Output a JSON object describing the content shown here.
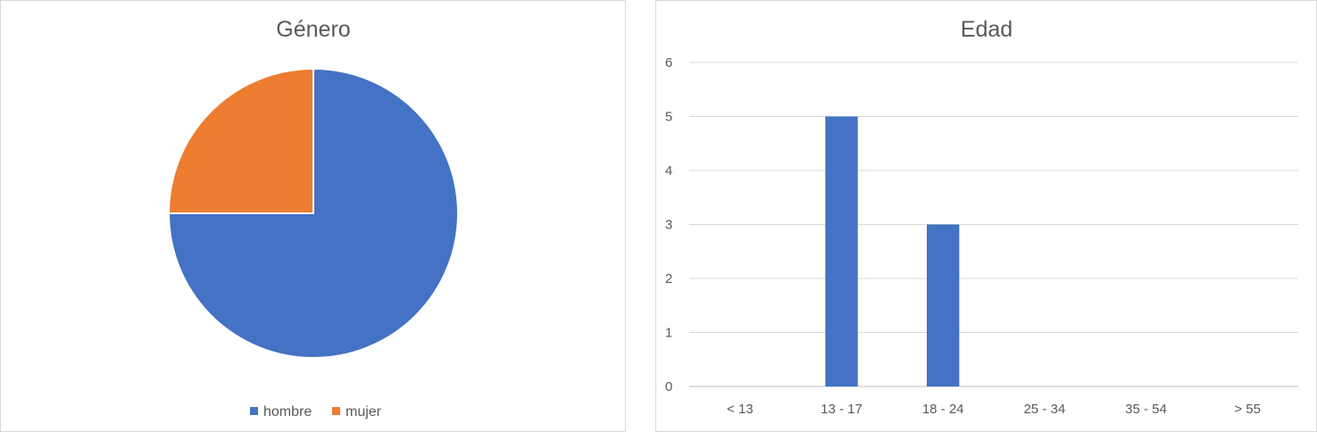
{
  "chart_data": [
    {
      "type": "pie",
      "title": "Género",
      "categories": [
        "hombre",
        "mujer"
      ],
      "values": [
        75,
        25
      ],
      "colors": [
        "#4472c4",
        "#ed7d31"
      ],
      "legend": "bottom"
    },
    {
      "type": "bar",
      "title": "Edad",
      "categories": [
        "< 13",
        "13 - 17",
        "18 - 24",
        "25 - 34",
        "35 - 54",
        "> 55"
      ],
      "values": [
        0,
        5,
        3,
        0,
        0,
        0
      ],
      "color": "#4472c4",
      "xlabel": "",
      "ylabel": "",
      "ylim": [
        0,
        6
      ],
      "yticks": [
        0,
        1,
        2,
        3,
        4,
        5,
        6
      ],
      "grid": true,
      "legend": "none"
    }
  ]
}
